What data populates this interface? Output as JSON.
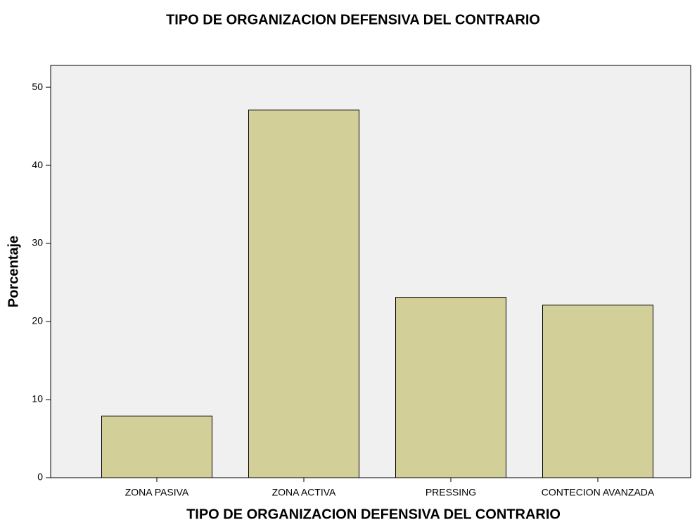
{
  "chart_data": {
    "type": "bar",
    "title": "TIPO DE ORGANIZACION DEFENSIVA DEL CONTRARIO",
    "x_label": "TIPO DE ORGANIZACION DEFENSIVA DEL CONTRARIO",
    "y_label": "Porcentaje",
    "categories": [
      "ZONA PASIVA",
      "ZONA ACTIVA",
      "PRESSING",
      "CONTECION AVANZADA"
    ],
    "values": [
      7.9,
      47.1,
      23.1,
      22.1
    ],
    "color": "#d3cf98",
    "ylim": [
      0,
      52.8
    ],
    "yticks": [
      0,
      10,
      20,
      30,
      40,
      50
    ],
    "grid": false
  }
}
